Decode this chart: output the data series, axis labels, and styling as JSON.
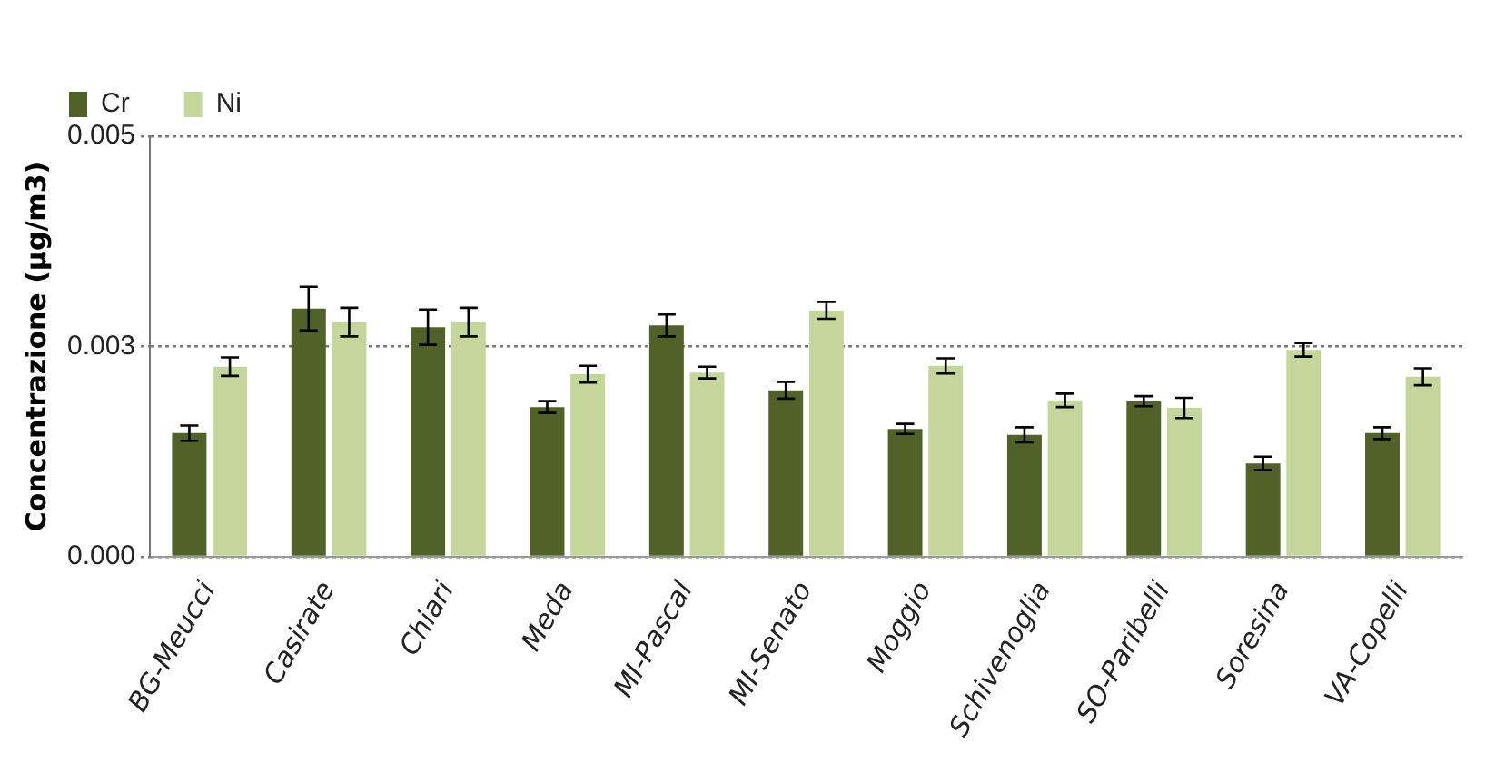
{
  "chart_data": {
    "type": "bar",
    "ylabel": "Concentrazione (µg/m3)",
    "categories": [
      "BG-Meucci",
      "Casirate",
      "Chiari",
      "Meda",
      "MI-Pascal",
      "MI-Senato",
      "Moggio",
      "Schivenoglia",
      "SO-Paribelli",
      "Soresina",
      "VA-Copelli"
    ],
    "series": [
      {
        "name": "Cr",
        "color": "#4f6228",
        "values": [
          0.00147,
          0.00295,
          0.00273,
          0.00178,
          0.00275,
          0.00198,
          0.00152,
          0.00145,
          0.00185,
          0.00111,
          0.00147
        ],
        "errors": [
          9e-05,
          0.00026,
          0.00021,
          7e-05,
          0.00013,
          0.0001,
          6e-05,
          9e-05,
          6e-05,
          8e-05,
          7e-05
        ]
      },
      {
        "name": "Ni",
        "color": "#c4d79b",
        "values": [
          0.00226,
          0.00279,
          0.00279,
          0.00217,
          0.00219,
          0.00293,
          0.00227,
          0.00186,
          0.00177,
          0.00246,
          0.00214
        ],
        "errors": [
          0.00011,
          0.00017,
          0.00017,
          0.0001,
          7e-05,
          0.0001,
          9e-05,
          8e-05,
          0.00012,
          8e-05,
          0.0001
        ]
      }
    ],
    "ylim": [
      0,
      0.005
    ],
    "yticks": [
      {
        "value": 0,
        "label": "0.000"
      },
      {
        "value": 0.0025,
        "label": "0.003"
      },
      {
        "value": 0.005,
        "label": "0.005"
      }
    ],
    "grid": "y",
    "legend": "top left"
  }
}
